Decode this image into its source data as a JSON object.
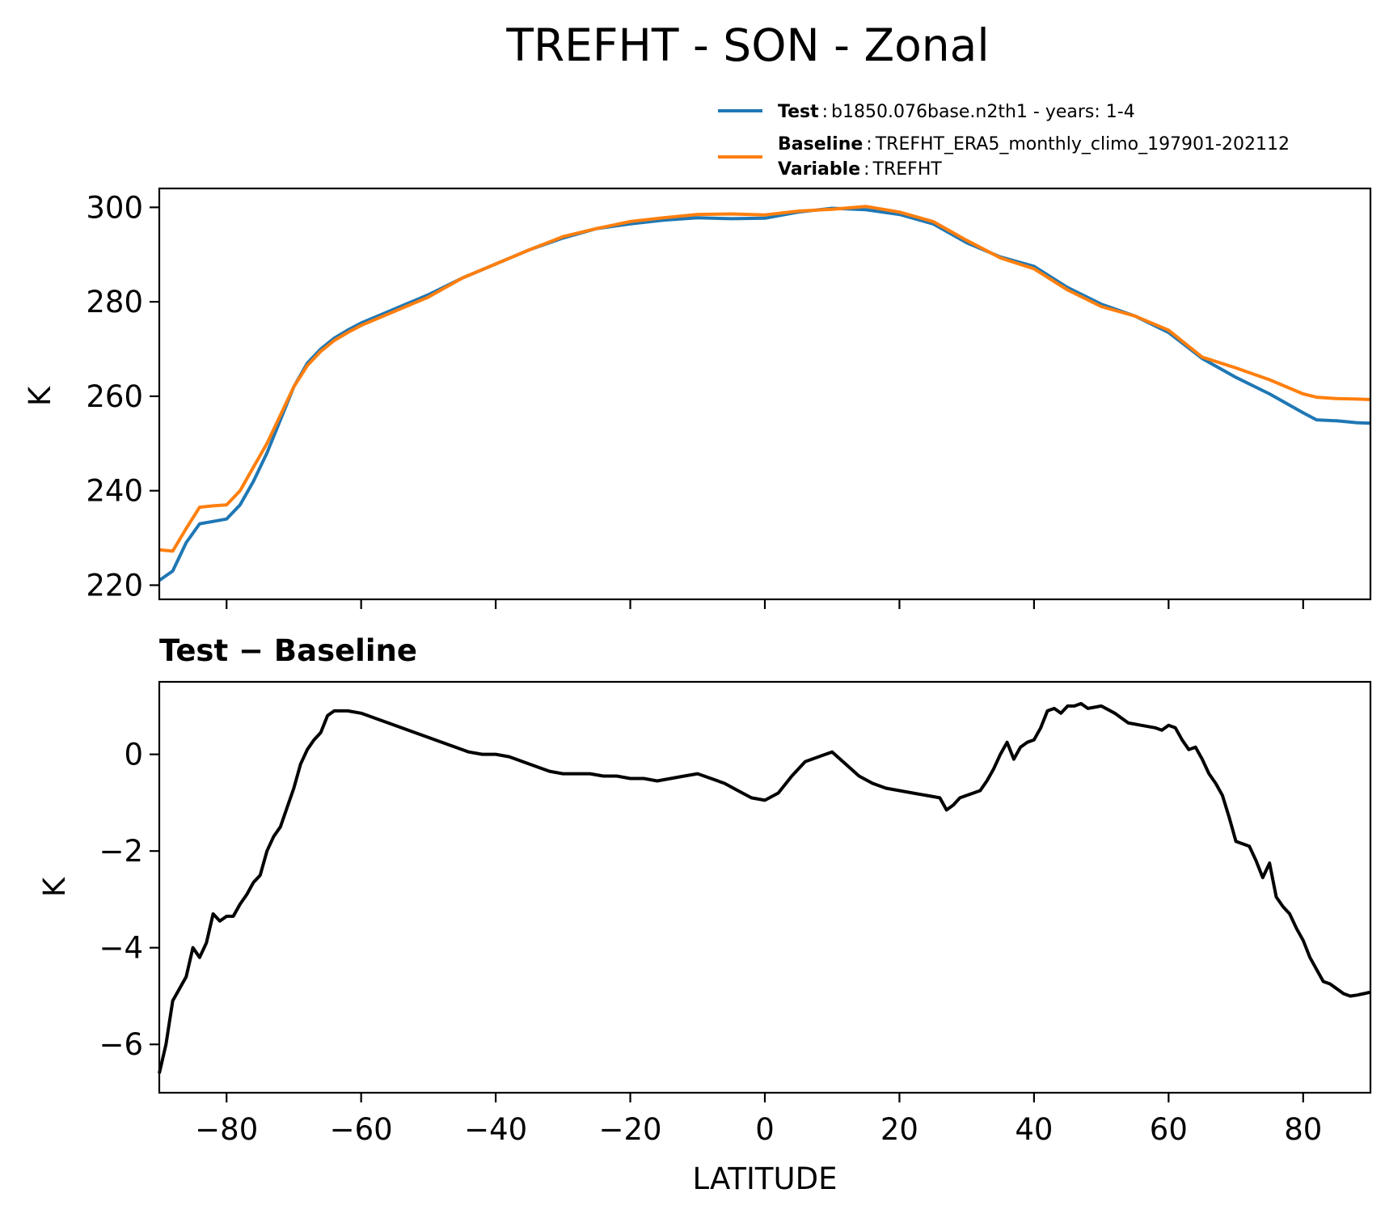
{
  "figure_title": "TREFHT - SON - Zonal",
  "colors": {
    "test": "#1f77b4",
    "baseline": "#ff7f0e",
    "difference": "#000000"
  },
  "legend": {
    "test_key": "Test",
    "test_text": "b1850.076base.n2th1 - years: 1-4",
    "baseline_key": "Baseline",
    "baseline_text": "TREFHT_ERA5_monthly_climo_197901-202112",
    "variable_key": "Variable",
    "variable_text": "TREFHT"
  },
  "chart_data": [
    {
      "type": "line",
      "title": "TREFHT - SON - Zonal",
      "xlabel": "",
      "ylabel": "K",
      "xlim": [
        -90,
        90
      ],
      "ylim": [
        217,
        304
      ],
      "xticks": [
        -80,
        -60,
        -40,
        -20,
        0,
        20,
        40,
        60,
        80
      ],
      "yticks": [
        220,
        240,
        260,
        280,
        300
      ],
      "ytick_labels": [
        "220",
        "240",
        "260",
        "280",
        "300"
      ],
      "series": [
        {
          "name": "Test",
          "x": [
            -90,
            -88,
            -86,
            -84,
            -82,
            -80,
            -78,
            -76,
            -74,
            -72,
            -70,
            -68,
            -66,
            -64,
            -62,
            -60,
            -55,
            -50,
            -45,
            -40,
            -35,
            -30,
            -25,
            -20,
            -15,
            -10,
            -5,
            0,
            5,
            10,
            15,
            20,
            25,
            30,
            35,
            40,
            45,
            50,
            55,
            60,
            65,
            70,
            75,
            80,
            82,
            85,
            88,
            90
          ],
          "values": [
            221,
            223,
            229,
            233,
            233.5,
            234,
            237,
            242,
            248,
            255,
            262,
            267,
            270,
            272.3,
            274,
            275.5,
            278.5,
            281.5,
            285,
            288,
            291,
            293.5,
            295.5,
            296.5,
            297.3,
            297.8,
            297.6,
            297.7,
            299,
            299.8,
            299.5,
            298.5,
            296.5,
            292.5,
            289.5,
            287.5,
            283,
            279.5,
            277,
            273.5,
            268,
            264,
            260.5,
            256.5,
            255,
            254.8,
            254.4,
            254.3
          ]
        },
        {
          "name": "Baseline",
          "x": [
            -90,
            -88,
            -86,
            -84,
            -82,
            -80,
            -78,
            -76,
            -74,
            -72,
            -70,
            -68,
            -66,
            -64,
            -62,
            -60,
            -55,
            -50,
            -45,
            -40,
            -35,
            -30,
            -25,
            -20,
            -15,
            -10,
            -5,
            0,
            5,
            10,
            15,
            20,
            25,
            30,
            35,
            40,
            45,
            50,
            55,
            60,
            65,
            70,
            75,
            80,
            82,
            85,
            88,
            90
          ],
          "values": [
            227.5,
            227.2,
            232,
            236.5,
            236.8,
            237,
            240,
            245,
            250,
            256,
            262,
            266.5,
            269.5,
            271.8,
            273.5,
            275,
            278,
            281,
            285,
            288,
            291,
            293.8,
            295.5,
            297,
            297.8,
            298.5,
            298.6,
            298.4,
            299.2,
            299.6,
            300.2,
            299,
            297,
            293,
            289.3,
            287,
            282.5,
            279,
            277,
            274,
            268.3,
            266,
            263.5,
            260.5,
            259.8,
            259.5,
            259.4,
            259.3
          ]
        }
      ]
    },
    {
      "type": "line",
      "title": "Test − Baseline",
      "xlabel": "LATITUDE",
      "ylabel": "K",
      "xlim": [
        -90,
        90
      ],
      "ylim": [
        -7,
        1.5
      ],
      "xticks": [
        -80,
        -60,
        -40,
        -20,
        0,
        20,
        40,
        60,
        80
      ],
      "xtick_labels": [
        "−80",
        "−60",
        "−40",
        "−20",
        "0",
        "20",
        "40",
        "60",
        "80"
      ],
      "yticks": [
        -6,
        -4,
        -2,
        0
      ],
      "ytick_labels": [
        "−6",
        "−4",
        "−2",
        "0"
      ],
      "series": [
        {
          "name": "Test − Baseline",
          "x": [
            -90,
            -89,
            -88,
            -86,
            -85,
            -84,
            -83,
            -82,
            -81,
            -80,
            -79,
            -78,
            -77,
            -76,
            -75,
            -74,
            -73,
            -72,
            -71,
            -70,
            -69,
            -68,
            -67,
            -66,
            -65,
            -64,
            -62,
            -60,
            -58,
            -56,
            -54,
            -52,
            -50,
            -48,
            -46,
            -44,
            -42,
            -40,
            -38,
            -36,
            -34,
            -32,
            -30,
            -28,
            -26,
            -24,
            -22,
            -20,
            -18,
            -16,
            -14,
            -12,
            -10,
            -8,
            -6,
            -4,
            -2,
            0,
            2,
            4,
            6,
            8,
            10,
            12,
            14,
            16,
            18,
            20,
            22,
            24,
            26,
            27,
            28,
            29,
            30,
            32,
            33,
            34,
            35,
            36,
            37,
            38,
            39,
            40,
            41,
            42,
            43,
            44,
            45,
            46,
            47,
            48,
            50,
            52,
            54,
            56,
            58,
            59,
            60,
            61,
            62,
            63,
            64,
            65,
            66,
            67,
            68,
            69,
            70,
            71,
            72,
            73,
            74,
            75,
            76,
            77,
            78,
            79,
            80,
            81,
            82,
            83,
            84,
            85,
            86,
            87,
            88,
            89,
            90
          ],
          "values": [
            -6.6,
            -6,
            -5.1,
            -4.6,
            -4,
            -4.2,
            -3.9,
            -3.3,
            -3.45,
            -3.35,
            -3.35,
            -3.1,
            -2.9,
            -2.65,
            -2.5,
            -2,
            -1.7,
            -1.5,
            -1.1,
            -0.7,
            -0.2,
            0.1,
            0.3,
            0.45,
            0.8,
            0.9,
            0.9,
            0.85,
            0.75,
            0.65,
            0.55,
            0.45,
            0.35,
            0.25,
            0.15,
            0.05,
            0,
            0,
            -0.05,
            -0.15,
            -0.25,
            -0.35,
            -0.4,
            -0.4,
            -0.4,
            -0.45,
            -0.45,
            -0.5,
            -0.5,
            -0.55,
            -0.5,
            -0.45,
            -0.4,
            -0.5,
            -0.6,
            -0.75,
            -0.9,
            -0.95,
            -0.8,
            -0.45,
            -0.15,
            -0.05,
            0.05,
            -0.2,
            -0.45,
            -0.6,
            -0.7,
            -0.75,
            -0.8,
            -0.85,
            -0.9,
            -1.15,
            -1.05,
            -0.9,
            -0.85,
            -0.75,
            -0.55,
            -0.3,
            0,
            0.25,
            -0.1,
            0.15,
            0.25,
            0.3,
            0.55,
            0.9,
            0.95,
            0.85,
            1.0,
            1.0,
            1.05,
            0.95,
            1.0,
            0.85,
            0.65,
            0.6,
            0.55,
            0.5,
            0.6,
            0.55,
            0.3,
            0.1,
            0.15,
            -0.1,
            -0.4,
            -0.6,
            -0.85,
            -1.3,
            -1.8,
            -1.85,
            -1.9,
            -2.2,
            -2.55,
            -2.25,
            -2.95,
            -3.15,
            -3.3,
            -3.6,
            -3.85,
            -4.2,
            -4.45,
            -4.7,
            -4.75,
            -4.85,
            -4.95,
            -5.0,
            -4.98,
            -4.95,
            -4.92
          ]
        }
      ]
    }
  ]
}
